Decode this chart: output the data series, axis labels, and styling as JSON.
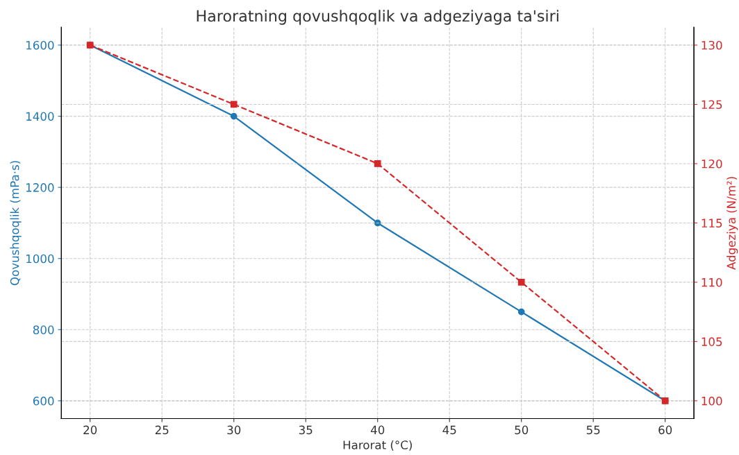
{
  "chart_data": {
    "type": "line",
    "title": "Haroratning qovushqoqlik va adgeziyaga ta'siri",
    "xlabel": "Harorat (°C)",
    "ylabel": "Qovushqoqlik (mPa·s)",
    "y2label": "Adgeziya (N/m²)",
    "x": [
      20,
      30,
      40,
      50,
      60
    ],
    "series": [
      {
        "color": "#1f77b4",
        "values": [
          1600,
          1400,
          1100,
          850,
          600
        ],
        "marker": "circle",
        "line_style": "solid"
      },
      {
        "color": "#d62728",
        "values": [
          130,
          125,
          120,
          110,
          100
        ],
        "marker": "square",
        "line_style": "dashed",
        "axis": "y2"
      }
    ],
    "xlim": [
      18,
      62
    ],
    "xticks": [
      20,
      25,
      30,
      35,
      40,
      45,
      50,
      55,
      60
    ],
    "ylim": [
      550,
      1650
    ],
    "yticks": [
      600,
      800,
      1000,
      1200,
      1400,
      1600
    ],
    "y2lim": [
      98.5,
      131.5
    ],
    "y2ticks": [
      100,
      105,
      110,
      115,
      120,
      125,
      130
    ],
    "grid": true
  }
}
